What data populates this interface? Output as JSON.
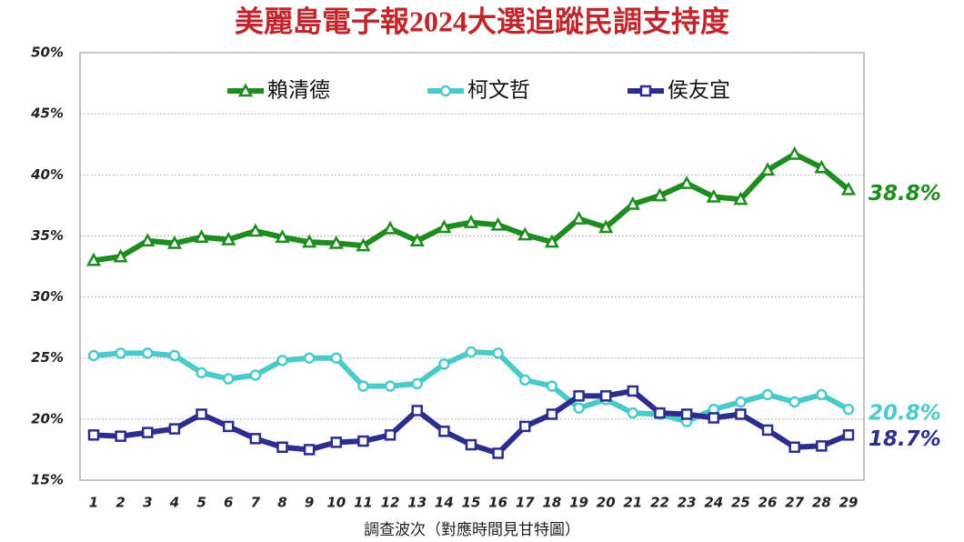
{
  "chart_data": {
    "type": "line",
    "title": "美麗島電子報2024大選追蹤民調支持度",
    "xlabel": "調查波次（對應時間見甘特圖）",
    "categories": [
      "1",
      "2",
      "3",
      "4",
      "5",
      "6",
      "7",
      "8",
      "9",
      "10",
      "11",
      "12",
      "13",
      "14",
      "15",
      "16",
      "17",
      "18",
      "19",
      "20",
      "21",
      "22",
      "23",
      "24",
      "25",
      "26",
      "27",
      "28",
      "29"
    ],
    "ylim": [
      15,
      50
    ],
    "yticks": [
      {
        "value": 15,
        "label": "15%"
      },
      {
        "value": 20,
        "label": "20%"
      },
      {
        "value": 25,
        "label": "25%"
      },
      {
        "value": 30,
        "label": "30%"
      },
      {
        "value": 35,
        "label": "35%"
      },
      {
        "value": 40,
        "label": "40%"
      },
      {
        "value": 45,
        "label": "45%"
      },
      {
        "value": 50,
        "label": "50%"
      }
    ],
    "grid": true,
    "series": [
      {
        "name": "賴清德",
        "color": "#1e8c1e",
        "marker": "triangle",
        "values": [
          33.0,
          33.3,
          34.6,
          34.4,
          34.9,
          34.7,
          35.4,
          34.9,
          34.5,
          34.4,
          34.2,
          35.6,
          34.6,
          35.7,
          36.1,
          35.9,
          35.1,
          34.5,
          36.4,
          35.7,
          37.6,
          38.3,
          39.3,
          38.2,
          38.0,
          40.4,
          41.7,
          40.6,
          38.8
        ],
        "value_labels": [
          null,
          null,
          null,
          null,
          null,
          null,
          null,
          null,
          null,
          null,
          null,
          null,
          null,
          null,
          null,
          null,
          null,
          null,
          null,
          null,
          null,
          null,
          null,
          null,
          null,
          null,
          null,
          null,
          "38.8%"
        ]
      },
      {
        "name": "柯文哲",
        "color": "#4ccaca",
        "marker": "circle",
        "values": [
          25.2,
          25.4,
          25.4,
          25.2,
          23.8,
          23.3,
          23.6,
          24.8,
          25.0,
          25.0,
          22.7,
          22.7,
          22.9,
          24.5,
          25.5,
          25.4,
          23.2,
          22.7,
          20.9,
          21.6,
          20.5,
          20.4,
          19.8,
          20.8,
          21.4,
          22.0,
          21.4,
          22.0,
          20.8
        ],
        "value_labels": [
          null,
          null,
          null,
          null,
          null,
          null,
          null,
          null,
          null,
          null,
          null,
          null,
          null,
          null,
          null,
          null,
          null,
          null,
          null,
          null,
          null,
          null,
          null,
          null,
          null,
          null,
          null,
          null,
          "20.8%"
        ]
      },
      {
        "name": "侯友宜",
        "color": "#2c2e8e",
        "marker": "square",
        "values": [
          18.7,
          18.6,
          18.9,
          19.2,
          20.4,
          19.4,
          18.4,
          17.7,
          17.5,
          18.1,
          18.2,
          18.7,
          20.7,
          19.0,
          17.9,
          17.2,
          19.4,
          20.4,
          21.9,
          21.9,
          22.3,
          20.5,
          20.4,
          20.1,
          20.4,
          19.1,
          17.7,
          17.8,
          18.7
        ],
        "value_labels": [
          null,
          null,
          null,
          null,
          null,
          null,
          null,
          null,
          null,
          null,
          null,
          null,
          null,
          null,
          null,
          null,
          null,
          null,
          null,
          null,
          null,
          null,
          null,
          null,
          null,
          null,
          null,
          null,
          "18.7%"
        ]
      }
    ]
  }
}
